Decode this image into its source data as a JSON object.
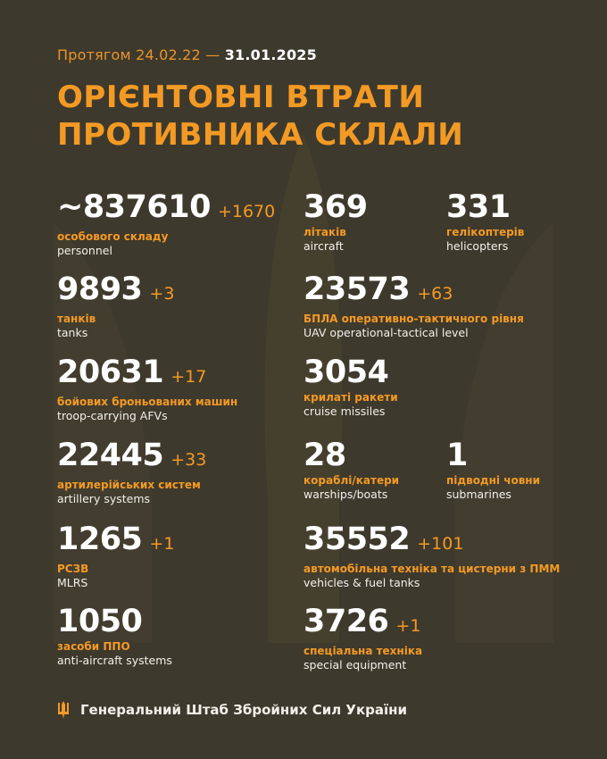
{
  "header": {
    "period_prefix": "Протягом 24.02.22 —",
    "period_end": "31.01.2025",
    "title_line1": "ОРІЄНТОВНІ ВТРАТИ",
    "title_line2": "ПРОТИВНИКА СКЛАЛИ"
  },
  "stats": {
    "personnel": {
      "value": "~837610",
      "delta": "+1670",
      "ua": "особового складу",
      "en": "personnel"
    },
    "tanks": {
      "value": "9893",
      "delta": "+3",
      "ua": "танків",
      "en": "tanks"
    },
    "afv": {
      "value": "20631",
      "delta": "+17",
      "ua": "бойових броньованих машин",
      "en": "troop-carrying AFVs"
    },
    "artillery": {
      "value": "22445",
      "delta": "+33",
      "ua": "артилерійських систем",
      "en": "artillery systems"
    },
    "mlrs": {
      "value": "1265",
      "delta": "+1",
      "ua": "РСЗВ",
      "en": "MLRS"
    },
    "antiair": {
      "value": "1050",
      "delta": "",
      "ua": "засоби ППО",
      "en": "anti-aircraft systems"
    },
    "aircraft": {
      "value": "369",
      "delta": "",
      "ua": "літаків",
      "en": "aircraft"
    },
    "helicopters": {
      "value": "331",
      "delta": "",
      "ua": "гелікоптерів",
      "en": "helicopters"
    },
    "uav": {
      "value": "23573",
      "delta": "+63",
      "ua": "БПЛА оперативно-тактичного рівня",
      "en": "UAV operational-tactical level"
    },
    "cruise": {
      "value": "3054",
      "delta": "",
      "ua": "крилаті ракети",
      "en": "cruise missiles"
    },
    "ships": {
      "value": "28",
      "delta": "",
      "ua": "кораблі/катери",
      "en": "warships/boats"
    },
    "submarines": {
      "value": "1",
      "delta": "",
      "ua": "підводні човни",
      "en": "submarines"
    },
    "vehicles": {
      "value": "35552",
      "delta": "+101",
      "ua": "автомобільна техніка та цистерни з ПММ",
      "en": "vehicles & fuel tanks"
    },
    "special": {
      "value": "3726",
      "delta": "+1",
      "ua": "спеціальна техніка",
      "en": "special equipment"
    }
  },
  "footer": {
    "text": "Генеральний Штаб Збройних Сил України",
    "icon": "trident-icon"
  },
  "colors": {
    "background": "#3e392d",
    "accent": "#f39a24",
    "text": "#ffffff"
  }
}
